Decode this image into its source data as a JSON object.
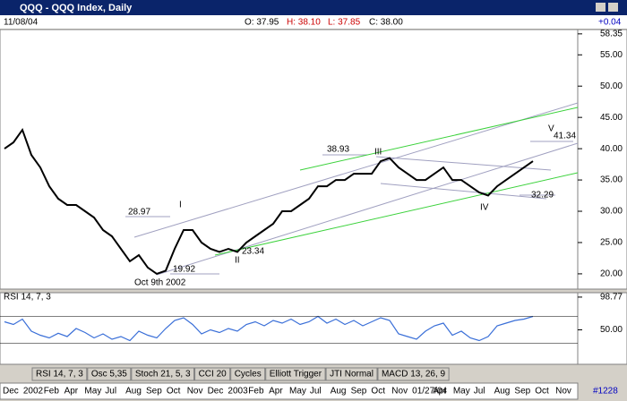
{
  "window": {
    "title": "QQQ - QQQ Index, Daily",
    "date": "11/08/04",
    "change": "+0.04",
    "open": "O: 37.95",
    "high": "H: 38.10",
    "low": "L: 37.85",
    "close": "C: 38.00",
    "bar_count": "#1228"
  },
  "chart_data": [
    {
      "type": "line",
      "series": [
        {
          "name": "QQQ",
          "color": "#000000",
          "values": [
            40,
            41,
            43,
            39,
            37,
            34,
            32,
            31,
            31,
            30,
            29,
            27,
            26,
            24,
            22,
            23,
            21,
            20,
            20.5,
            24,
            27,
            27,
            25,
            24,
            23.5,
            24,
            23.5,
            25,
            26,
            27,
            28,
            30,
            30,
            31,
            32,
            34,
            34,
            35,
            35,
            36,
            36,
            36,
            38,
            38.5,
            37,
            36,
            35,
            35,
            36,
            37,
            35,
            35,
            34,
            33,
            32.5,
            34,
            35,
            36,
            37,
            38
          ]
        }
      ],
      "ylim": [
        17.7,
        58.9
      ],
      "yticks": [
        {
          "value": 58.35,
          "label": "58.35"
        },
        {
          "value": 55,
          "label": "55.00"
        },
        {
          "value": 50,
          "label": "50.00"
        },
        {
          "value": 45,
          "label": "45.00"
        },
        {
          "value": 40,
          "label": "40.00"
        },
        {
          "value": 35,
          "label": "35.00"
        },
        {
          "value": 30,
          "label": "30.00"
        },
        {
          "value": 25,
          "label": "25.00"
        },
        {
          "value": 20,
          "label": "20.00"
        }
      ],
      "annotations": [
        "28.97",
        "I",
        "19.92",
        "Oct 9th 2002",
        "II",
        "23.34",
        "38.93",
        "III",
        "IV",
        "32.29",
        "V",
        "41.34"
      ]
    },
    {
      "type": "line",
      "title": "RSI 14, 7, 3",
      "series": [
        {
          "name": "RSI",
          "color": "#3a6fd8",
          "values": [
            62,
            58,
            66,
            48,
            42,
            38,
            45,
            40,
            52,
            46,
            38,
            44,
            36,
            40,
            34,
            48,
            42,
            38,
            52,
            64,
            68,
            58,
            44,
            50,
            46,
            52,
            48,
            58,
            62,
            56,
            64,
            60,
            66,
            58,
            62,
            70,
            60,
            66,
            58,
            64,
            56,
            62,
            68,
            64,
            44,
            40,
            36,
            48,
            56,
            60,
            42,
            48,
            38,
            34,
            40,
            56,
            60,
            64,
            66,
            70
          ]
        }
      ],
      "ylim": [
        0,
        104
      ],
      "yticks": [
        {
          "value": 98.77,
          "label": "98.77"
        },
        {
          "value": 50,
          "label": "50.00"
        }
      ]
    }
  ],
  "tabs": [
    "RSI 14, 7, 3",
    "Osc 5,35",
    "Stoch 21, 5, 3",
    "CCI 20",
    "Cycles",
    "Elliott Trigger",
    "JTI Normal",
    "MACD 13, 26, 9"
  ],
  "timeline": [
    "Dec",
    "2002",
    "Feb",
    "Apr",
    "May",
    "Jul",
    "Aug",
    "Sep",
    "Oct",
    "Nov",
    "Dec",
    "2003",
    "Feb",
    "Apr",
    "May",
    "Jul",
    "Aug",
    "Sep",
    "Oct",
    "Nov",
    "01/27/04",
    "Apr",
    "May",
    "Jul",
    "Aug",
    "Sep",
    "Oct",
    "Nov"
  ]
}
